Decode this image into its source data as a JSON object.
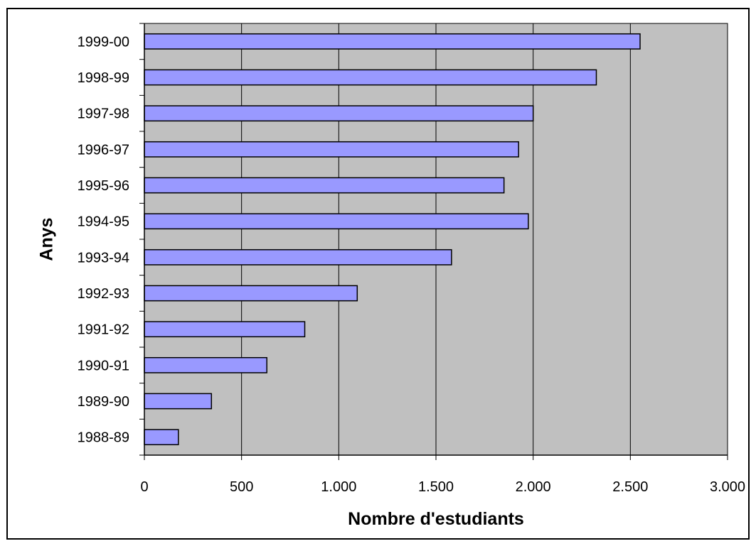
{
  "chart_data": {
    "type": "bar",
    "orientation": "horizontal",
    "categories": [
      "1999-00",
      "1998-99",
      "1997-98",
      "1996-97",
      "1995-96",
      "1994-95",
      "1993-94",
      "1992-93",
      "1991-92",
      "1990-91",
      "1989-90",
      "1988-89"
    ],
    "values": [
      2550,
      2325,
      2000,
      1925,
      1850,
      1975,
      1580,
      1095,
      825,
      630,
      345,
      175
    ],
    "xlabel": "Nombre d'estudiants",
    "ylabel": "Anys",
    "xlim": [
      0,
      3000
    ],
    "xticks": [
      0,
      500,
      1000,
      1500,
      2000,
      2500,
      3000
    ],
    "xtick_labels": [
      "0",
      "500",
      "1.000",
      "1.500",
      "2.000",
      "2.500",
      "3.000"
    ],
    "grid": "vertical",
    "legend": "none",
    "colors": {
      "bar_fill": "#9999ff",
      "bar_stroke": "#000000",
      "plot_background": "#c0c0c0",
      "gridline": "#000000"
    }
  }
}
